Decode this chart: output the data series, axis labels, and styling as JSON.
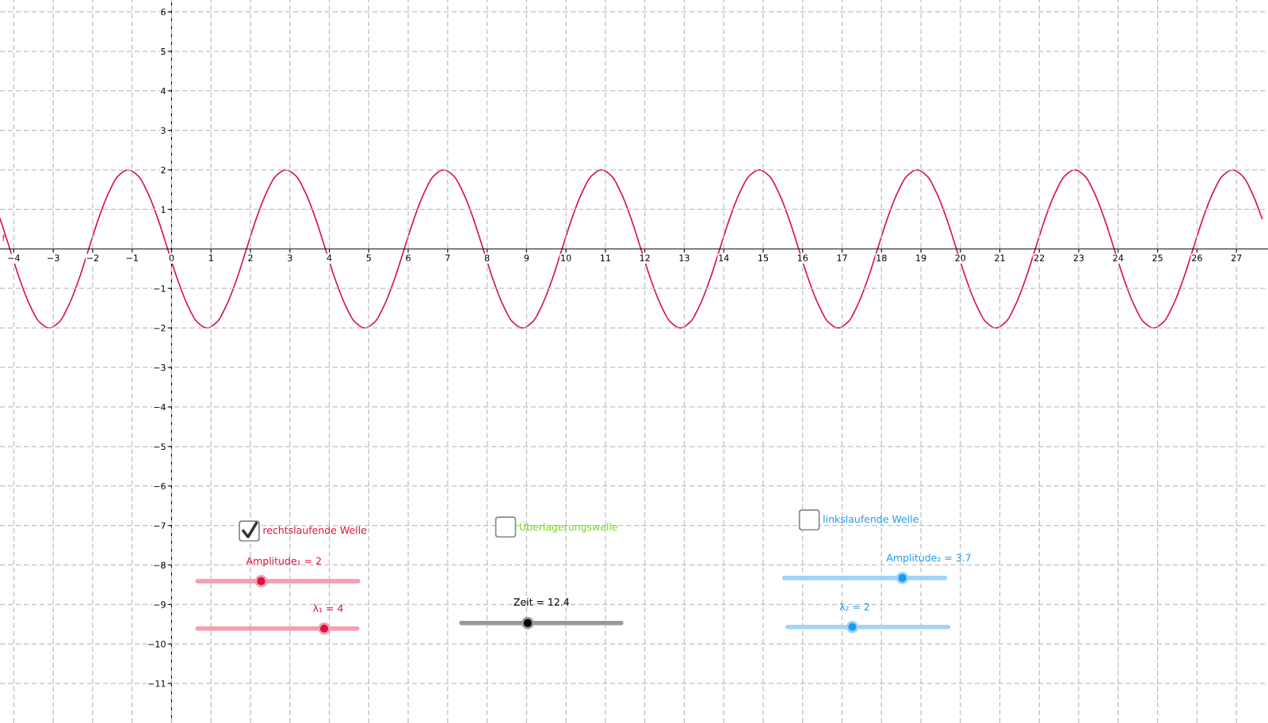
{
  "chart_data": {
    "type": "line",
    "xlim": [
      -4.35,
      27.8
    ],
    "ylim": [
      -12,
      6.3
    ],
    "xticks": [
      -4,
      -3,
      -2,
      -1,
      0,
      1,
      2,
      3,
      4,
      5,
      6,
      7,
      8,
      9,
      10,
      11,
      12,
      13,
      14,
      15,
      16,
      17,
      18,
      19,
      20,
      21,
      22,
      23,
      24,
      25,
      26,
      27
    ],
    "yticks": [
      -11,
      -10,
      -9,
      -8,
      -7,
      -6,
      -5,
      -4,
      -3,
      -2,
      -1,
      1,
      2,
      3,
      4,
      5,
      6
    ],
    "grid": true,
    "series": [
      {
        "name": "f",
        "color": "#d6164a",
        "x": [
          -4.35,
          -4.1,
          -3.85,
          -3.6,
          -3.35,
          -3.1,
          -2.85,
          -2.6,
          -2.35,
          -2.1,
          -1.85,
          -1.6,
          -1.35,
          -1.1,
          -0.85,
          -0.6,
          -0.35,
          -0.1,
          0.15,
          0.4,
          0.65,
          0.9,
          1.15,
          1.4,
          1.65,
          1.9,
          2.15,
          2.4,
          2.65,
          2.9,
          3.15,
          3.4,
          3.65,
          3.9,
          4.15,
          4.4,
          4.65,
          4.9,
          5.15,
          5.4,
          5.65,
          5.9,
          6.15,
          6.4,
          6.65,
          6.9,
          7.15,
          7.4,
          7.65,
          7.9,
          8.15,
          8.4,
          8.65,
          8.9,
          9.15,
          9.4,
          9.65,
          9.9,
          10.15,
          10.4,
          10.65,
          10.9,
          11.15,
          11.4,
          11.65,
          11.9,
          12.15,
          12.4,
          12.65,
          12.9,
          13.15,
          13.4,
          13.65,
          13.9,
          14.15,
          14.4,
          14.65,
          14.9,
          15.15,
          15.4,
          15.65,
          15.9,
          16.15,
          16.4,
          16.65,
          16.9,
          17.15,
          17.4,
          17.65,
          17.9,
          18.15,
          18.4,
          18.65,
          18.9,
          19.15,
          19.4,
          19.65,
          19.9,
          20.15,
          20.4,
          20.65,
          20.9,
          21.15,
          21.4,
          21.65,
          21.9,
          22.15,
          22.4,
          22.65,
          22.9,
          23.15,
          23.4,
          23.65,
          23.9,
          24.15,
          24.4,
          24.65,
          24.9,
          25.15,
          25.4,
          25.65,
          25.9,
          26.15,
          26.4,
          26.65,
          26.9,
          27.15,
          27.4,
          27.65
        ],
        "values": [
          0.77,
          0,
          -0.77,
          -1.41,
          -1.85,
          -2,
          -1.85,
          -1.41,
          -0.77,
          0,
          0.77,
          1.41,
          1.85,
          2,
          1.85,
          1.41,
          0.77,
          0,
          -0.77,
          -1.41,
          -1.85,
          -2,
          -1.85,
          -1.41,
          -0.77,
          0,
          0.77,
          1.41,
          1.85,
          2,
          1.85,
          1.41,
          0.77,
          0,
          -0.77,
          -1.41,
          -1.85,
          -2,
          -1.85,
          -1.41,
          -0.77,
          0,
          0.77,
          1.41,
          1.85,
          2,
          1.85,
          1.41,
          0.77,
          0,
          -0.77,
          -1.41,
          -1.85,
          -2,
          -1.85,
          -1.41,
          -0.77,
          0,
          0.77,
          1.41,
          1.85,
          2,
          1.85,
          1.41,
          0.77,
          0,
          -0.77,
          -1.41,
          -1.85,
          -2,
          -1.85,
          -1.41,
          -0.77,
          0,
          0.77,
          1.41,
          1.85,
          2,
          1.85,
          1.41,
          0.77,
          0,
          -0.77,
          -1.41,
          -1.85,
          -2,
          -1.85,
          -1.41,
          -0.77,
          0,
          0.77,
          1.41,
          1.85,
          2,
          1.85,
          1.41,
          0.77,
          0,
          -0.77,
          -1.41,
          -1.85,
          -2,
          -1.85,
          -1.41,
          -0.77,
          0,
          0.77,
          1.41,
          1.85,
          2,
          1.85,
          1.41,
          0.77,
          0,
          -0.77,
          -1.41,
          -1.85,
          -2,
          -1.85,
          -1.41,
          -0.77,
          0,
          0.77,
          1.41,
          1.85,
          2,
          1.85,
          1.41,
          0.77
        ]
      }
    ],
    "annotations": [
      "rechtslaufende Welle",
      "Überlagerungswelle",
      "linkslaufende Welle",
      "Amplitude₁ = 2",
      "λ₁ = 4",
      "Zeit = 12.4",
      "Amplitude₂ = 3.7",
      "λ₂ = 2"
    ]
  }
}
